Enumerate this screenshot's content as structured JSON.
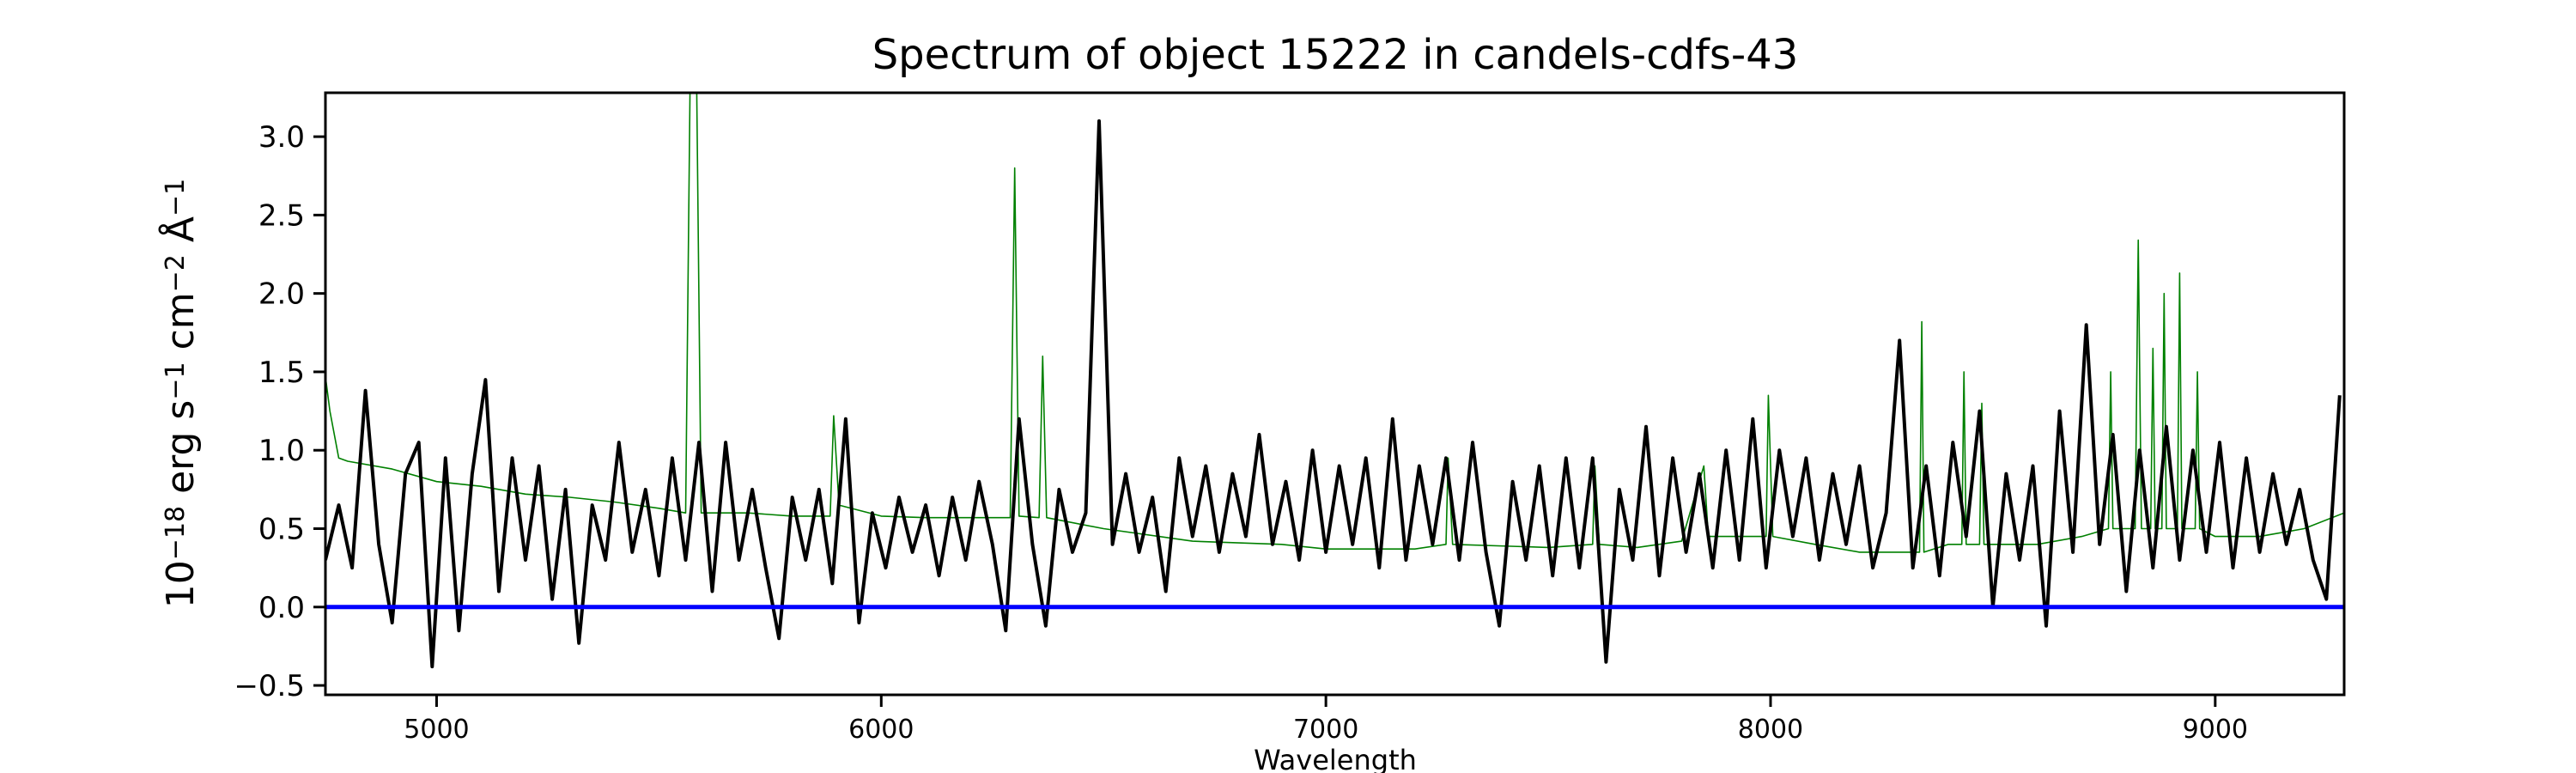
{
  "chart_data": {
    "type": "line",
    "title": "Spectrum of object 15222 in candels-cdfs-43",
    "xlabel": "Wavelength",
    "ylabel_parts": [
      "10",
      "−18",
      " erg s",
      "−1",
      " cm",
      "−2",
      " Å",
      "−1"
    ],
    "xlim": [
      4750,
      9290
    ],
    "ylim": [
      -0.56,
      3.28
    ],
    "xticks": [
      5000,
      6000,
      7000,
      8000,
      9000
    ],
    "xtick_labels": [
      "5000",
      "6000",
      "7000",
      "8000",
      "9000"
    ],
    "yticks": [
      -0.5,
      0.0,
      0.5,
      1.0,
      1.5,
      2.0,
      2.5,
      3.0
    ],
    "ytick_labels": [
      "−0.5",
      "0.0",
      "0.5",
      "1.0",
      "1.5",
      "2.0",
      "2.5",
      "3.0"
    ],
    "grid": false,
    "series": [
      {
        "color": "#008000",
        "x": [
          4750,
          4760,
          4780,
          4800,
          4900,
          5000,
          5100,
          5200,
          5300,
          5400,
          5500,
          5560,
          5570,
          5585,
          5595,
          5700,
          5800,
          5885,
          5893,
          5905,
          6000,
          6100,
          6200,
          6290,
          6300,
          6310,
          6355,
          6363,
          6372,
          6500,
          6700,
          6900,
          7000,
          7200,
          7270,
          7275,
          7285,
          7500,
          7600,
          7605,
          7615,
          7700,
          7800,
          7850,
          7860,
          7990,
          7995,
          8005,
          8100,
          8200,
          8335,
          8340,
          8345,
          8400,
          8430,
          8435,
          8440,
          8470,
          8475,
          8480,
          8600,
          8700,
          8760,
          8765,
          8770,
          8820,
          8827,
          8834,
          8855,
          8860,
          8865,
          8880,
          8885,
          8890,
          8915,
          8920,
          8925,
          8955,
          8960,
          8965,
          9000,
          9100,
          9200,
          9290
        ],
        "y": [
          1.47,
          1.25,
          0.95,
          0.93,
          0.88,
          0.8,
          0.77,
          0.72,
          0.7,
          0.67,
          0.63,
          0.6,
          3.3,
          3.3,
          0.6,
          0.6,
          0.58,
          0.58,
          1.22,
          0.65,
          0.58,
          0.57,
          0.57,
          0.57,
          2.8,
          0.58,
          0.57,
          1.6,
          0.57,
          0.5,
          0.42,
          0.4,
          0.37,
          0.37,
          0.4,
          0.95,
          0.4,
          0.38,
          0.4,
          0.9,
          0.4,
          0.38,
          0.42,
          0.9,
          0.45,
          0.45,
          1.35,
          0.45,
          0.4,
          0.35,
          0.35,
          1.82,
          0.35,
          0.4,
          0.4,
          1.5,
          0.4,
          0.4,
          1.3,
          0.4,
          0.4,
          0.45,
          0.5,
          1.5,
          0.5,
          0.5,
          2.34,
          0.5,
          0.5,
          1.65,
          0.5,
          0.5,
          2.0,
          0.5,
          0.5,
          2.13,
          0.5,
          0.5,
          1.5,
          0.5,
          0.45,
          0.45,
          0.5,
          0.6
        ]
      },
      {
        "color": "#000000",
        "x": [
          4750,
          4780,
          4810,
          4840,
          4870,
          4900,
          4930,
          4960,
          4990,
          5020,
          5050,
          5080,
          5110,
          5140,
          5170,
          5200,
          5230,
          5260,
          5290,
          5320,
          5350,
          5380,
          5410,
          5440,
          5470,
          5500,
          5530,
          5560,
          5590,
          5620,
          5650,
          5680,
          5710,
          5740,
          5770,
          5800,
          5830,
          5860,
          5890,
          5920,
          5950,
          5980,
          6010,
          6040,
          6070,
          6100,
          6130,
          6160,
          6190,
          6220,
          6250,
          6280,
          6310,
          6340,
          6370,
          6400,
          6430,
          6460,
          6490,
          6520,
          6550,
          6580,
          6610,
          6640,
          6670,
          6700,
          6730,
          6760,
          6790,
          6820,
          6850,
          6880,
          6910,
          6940,
          6970,
          7000,
          7030,
          7060,
          7090,
          7120,
          7150,
          7180,
          7210,
          7240,
          7270,
          7300,
          7330,
          7360,
          7390,
          7420,
          7450,
          7480,
          7510,
          7540,
          7570,
          7600,
          7630,
          7660,
          7690,
          7720,
          7750,
          7780,
          7810,
          7840,
          7870,
          7900,
          7930,
          7960,
          7990,
          8020,
          8050,
          8080,
          8110,
          8140,
          8170,
          8200,
          8230,
          8260,
          8290,
          8320,
          8350,
          8380,
          8410,
          8440,
          8470,
          8500,
          8530,
          8560,
          8590,
          8620,
          8650,
          8680,
          8710,
          8740,
          8770,
          8800,
          8830,
          8860,
          8890,
          8920,
          8950,
          8980,
          9010,
          9040,
          9070,
          9100,
          9130,
          9160,
          9190,
          9220,
          9250,
          9280
        ],
        "y": [
          0.3,
          0.65,
          0.25,
          1.38,
          0.4,
          -0.1,
          0.85,
          1.05,
          -0.38,
          0.95,
          -0.15,
          0.85,
          1.45,
          0.1,
          0.95,
          0.3,
          0.9,
          0.05,
          0.75,
          -0.23,
          0.65,
          0.3,
          1.05,
          0.35,
          0.75,
          0.2,
          0.95,
          0.3,
          1.05,
          0.1,
          1.05,
          0.3,
          0.75,
          0.25,
          -0.2,
          0.7,
          0.3,
          0.75,
          0.15,
          1.2,
          -0.1,
          0.6,
          0.25,
          0.7,
          0.35,
          0.65,
          0.2,
          0.7,
          0.3,
          0.8,
          0.4,
          -0.15,
          1.2,
          0.4,
          -0.12,
          0.75,
          0.35,
          0.6,
          3.1,
          0.4,
          0.85,
          0.35,
          0.7,
          0.1,
          0.95,
          0.45,
          0.9,
          0.35,
          0.85,
          0.45,
          1.1,
          0.4,
          0.8,
          0.3,
          1.0,
          0.35,
          0.9,
          0.4,
          0.95,
          0.25,
          1.2,
          0.3,
          0.9,
          0.4,
          0.95,
          0.3,
          1.05,
          0.35,
          -0.12,
          0.8,
          0.3,
          0.9,
          0.2,
          0.95,
          0.25,
          0.95,
          -0.35,
          0.75,
          0.3,
          1.15,
          0.2,
          0.95,
          0.35,
          0.85,
          0.25,
          1.0,
          0.3,
          1.2,
          0.25,
          1.0,
          0.45,
          0.95,
          0.3,
          0.85,
          0.4,
          0.9,
          0.25,
          0.6,
          1.7,
          0.25,
          0.9,
          0.2,
          1.05,
          0.45,
          1.25,
          0.0,
          0.85,
          0.3,
          0.9,
          -0.12,
          1.25,
          0.35,
          1.8,
          0.4,
          1.1,
          0.1,
          1.0,
          0.25,
          1.15,
          0.3,
          1.0,
          0.35,
          1.05,
          0.25,
          0.95,
          0.35,
          0.85,
          0.4,
          0.75,
          0.3,
          0.05,
          1.35
        ]
      },
      {
        "color": "#0000ff",
        "x": [
          4750,
          9290
        ],
        "y": [
          0.0,
          0.0
        ]
      }
    ]
  }
}
